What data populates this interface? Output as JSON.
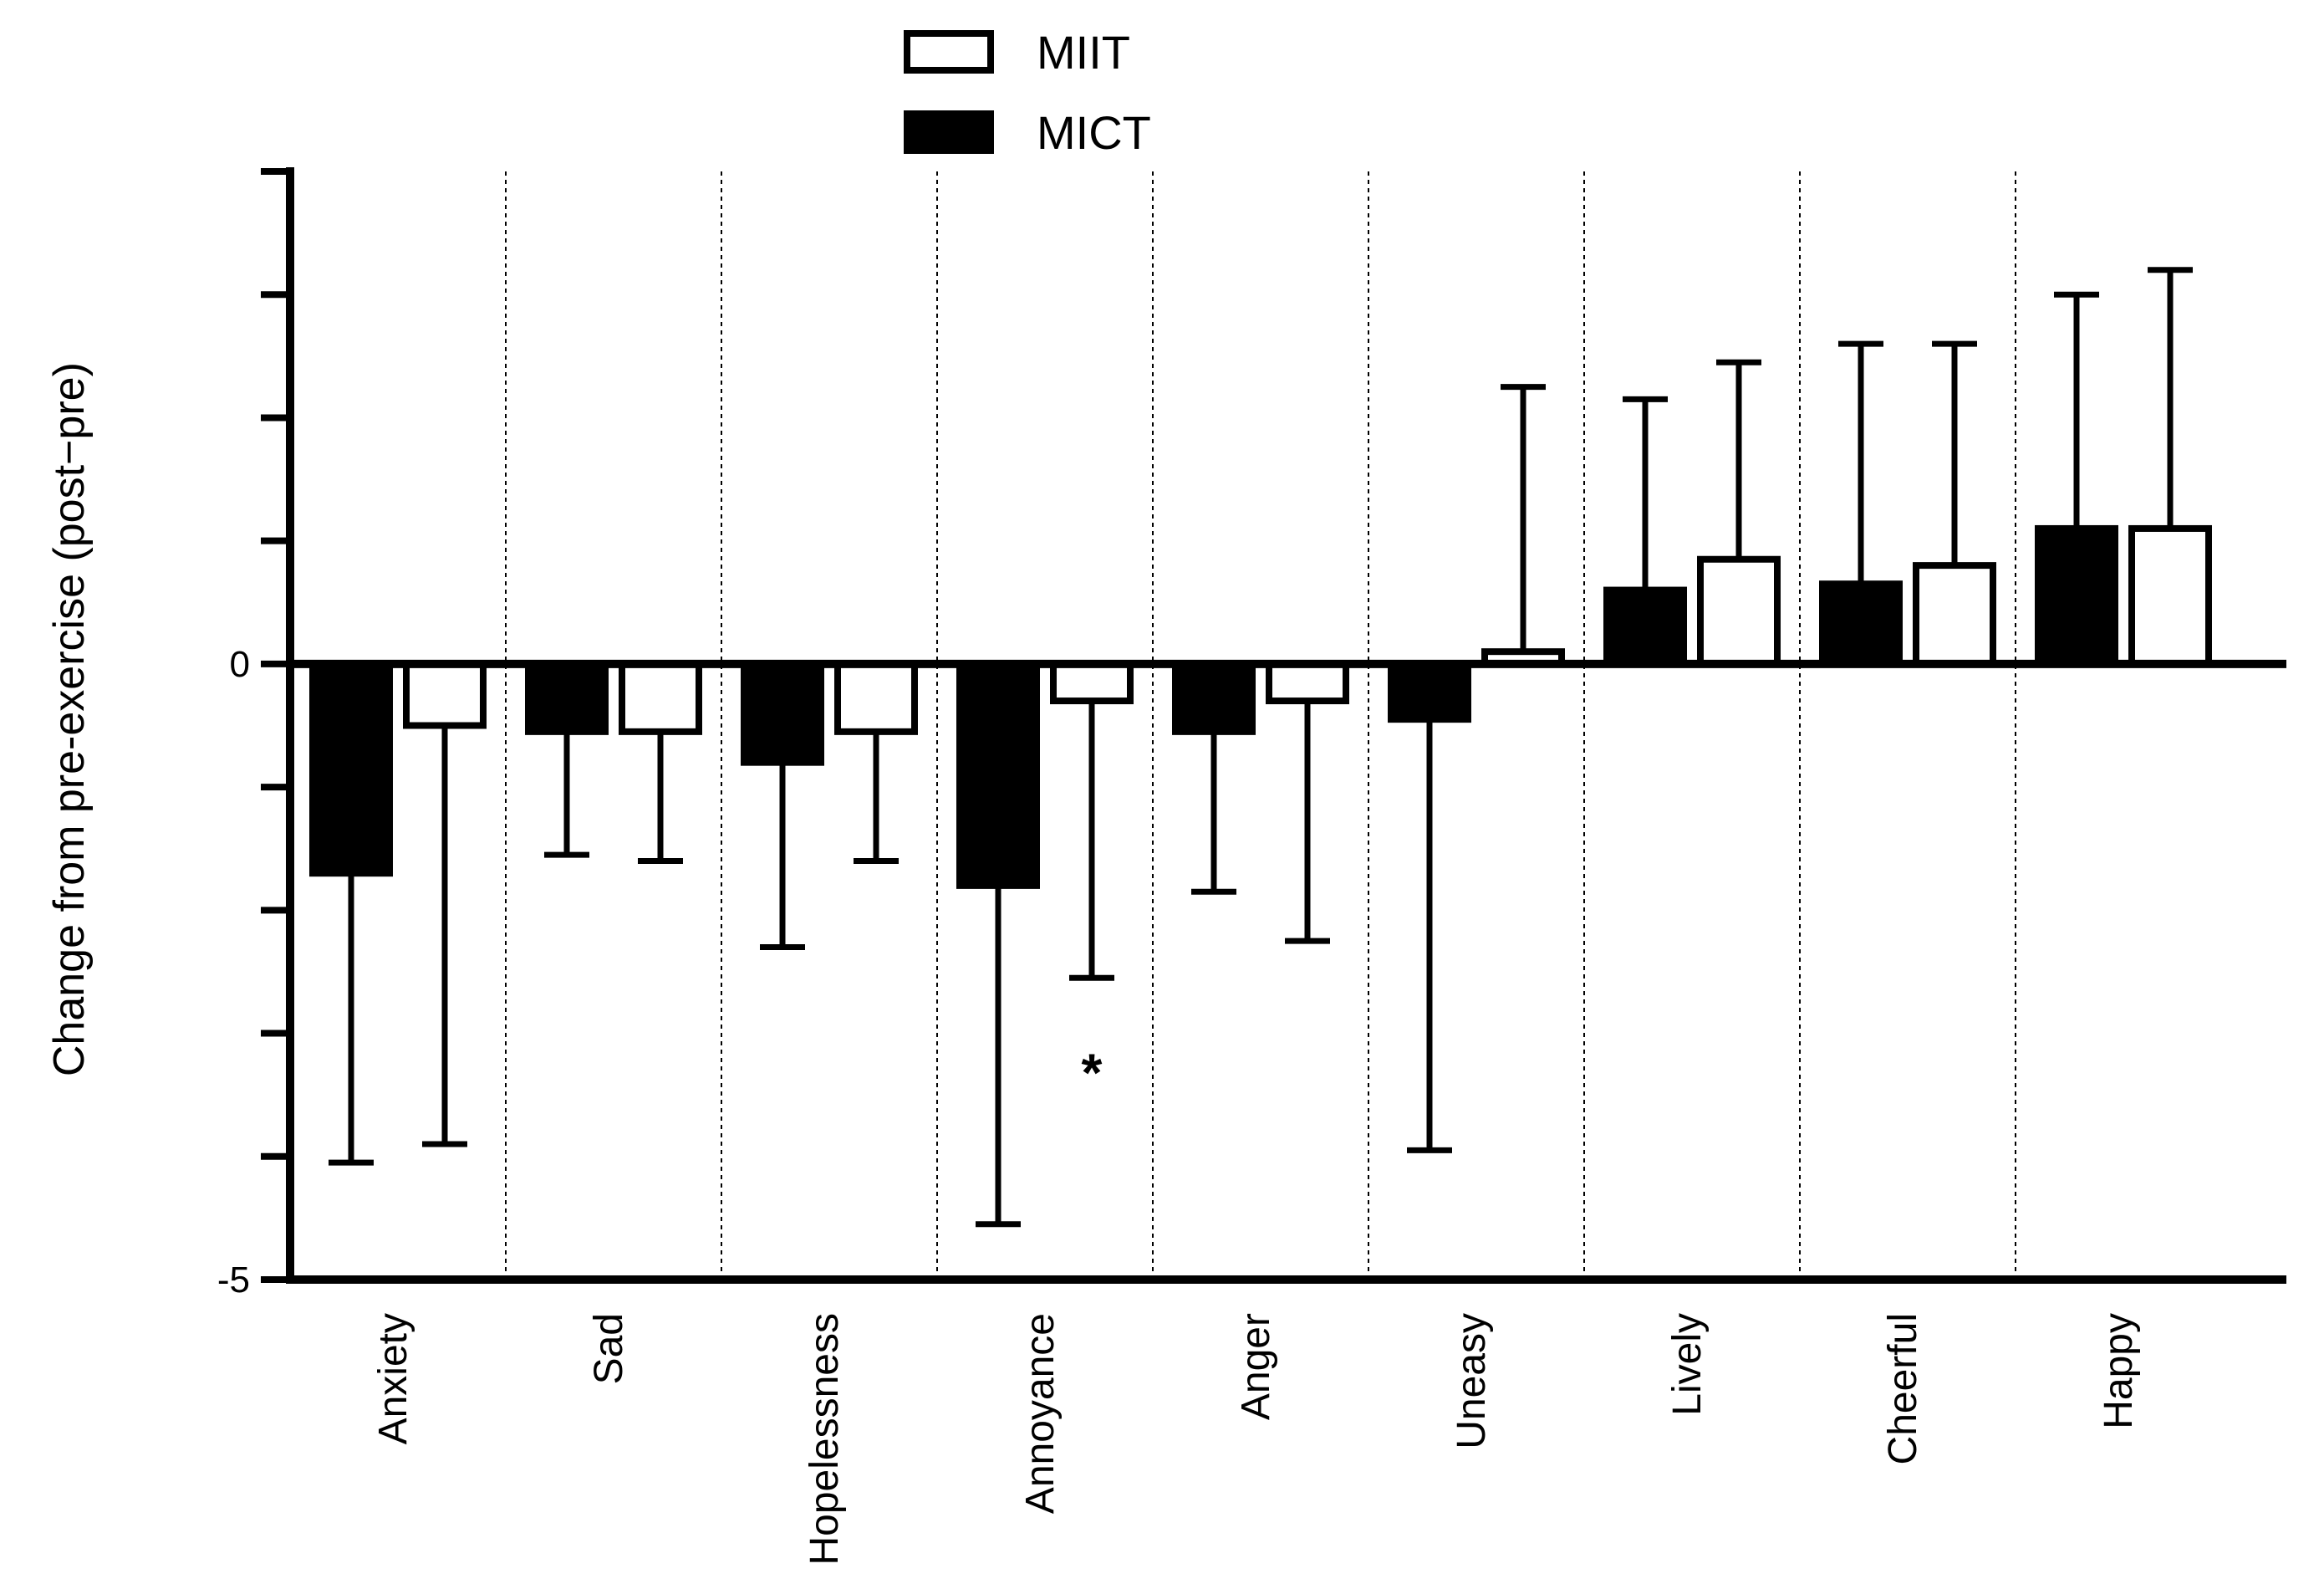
{
  "chart_data": {
    "type": "bar",
    "title": "",
    "xlabel": "",
    "ylabel": "Change from pre-exercise (post−pre)",
    "ylim": [
      -5,
      4
    ],
    "yticks": [
      -5,
      -4,
      -3,
      -2,
      -1,
      0,
      1,
      2,
      3,
      4
    ],
    "ytick_labels": [
      {
        "value": 0,
        "label": "0"
      },
      {
        "value": -5,
        "label": "-5"
      }
    ],
    "categories": [
      "Anxiety",
      "Sad",
      "Hopelessness",
      "Annoyance",
      "Anger",
      "Uneasy",
      "Lively",
      "Cheerful",
      "Happy"
    ],
    "series": [
      {
        "name": "MICT",
        "color": "#000000",
        "fill": "solid",
        "values": [
          -1.7,
          -0.55,
          -0.8,
          -1.8,
          -0.55,
          -0.45,
          0.6,
          0.65,
          1.1
        ],
        "error_bars": [
          2.35,
          1.0,
          1.5,
          2.75,
          1.3,
          3.5,
          1.55,
          1.95,
          1.9
        ]
      },
      {
        "name": "MIIT",
        "color": "#ffffff",
        "fill": "hollow",
        "values": [
          -0.5,
          -0.55,
          -0.55,
          -0.3,
          -0.3,
          0.1,
          0.85,
          0.8,
          1.1
        ],
        "error_bars": [
          3.4,
          1.05,
          1.05,
          2.25,
          1.95,
          2.15,
          1.6,
          1.8,
          2.1
        ]
      }
    ],
    "legend": {
      "position": "top-center",
      "entries": [
        "MIIT",
        "MICT"
      ]
    },
    "annotations": [
      {
        "text": "*",
        "category": "Annoyance",
        "series": "MIIT",
        "y": -3.3
      }
    ],
    "grid": "dotted vertical separators between categories",
    "category_label_rotation": -90
  }
}
